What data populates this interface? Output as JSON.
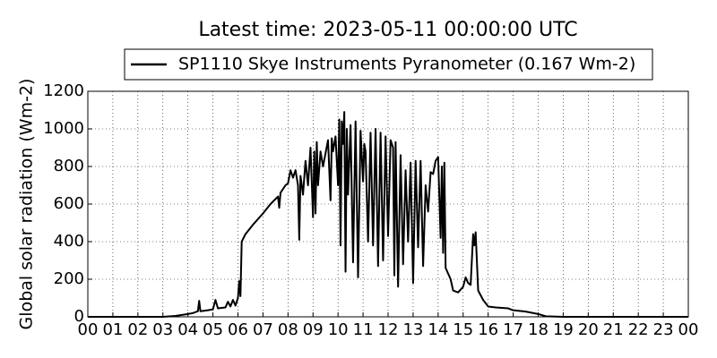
{
  "chart_data": {
    "type": "line",
    "title": "Latest time: 2023-05-11 00:00:00 UTC",
    "y_label": "Global solar radiation (Wm-2)",
    "grid": true,
    "xlim": [
      0,
      24
    ],
    "ylim": [
      0,
      1200
    ],
    "yticks": [
      0,
      200,
      400,
      600,
      800,
      1000,
      1200
    ],
    "xticks": [
      {
        "value": 0,
        "label": "00"
      },
      {
        "value": 1,
        "label": "01"
      },
      {
        "value": 2,
        "label": "02"
      },
      {
        "value": 3,
        "label": "03"
      },
      {
        "value": 4,
        "label": "04"
      },
      {
        "value": 5,
        "label": "05"
      },
      {
        "value": 6,
        "label": "06"
      },
      {
        "value": 7,
        "label": "07"
      },
      {
        "value": 8,
        "label": "08"
      },
      {
        "value": 9,
        "label": "09"
      },
      {
        "value": 10,
        "label": "10"
      },
      {
        "value": 11,
        "label": "11"
      },
      {
        "value": 12,
        "label": "12"
      },
      {
        "value": 13,
        "label": "13"
      },
      {
        "value": 14,
        "label": "14"
      },
      {
        "value": 15,
        "label": "15"
      },
      {
        "value": 16,
        "label": "16"
      },
      {
        "value": 17,
        "label": "17"
      },
      {
        "value": 18,
        "label": "18"
      },
      {
        "value": 19,
        "label": "19"
      },
      {
        "value": 20,
        "label": "20"
      },
      {
        "value": 21,
        "label": "21"
      },
      {
        "value": 22,
        "label": "22"
      },
      {
        "value": 23,
        "label": "23"
      },
      {
        "value": 24,
        "label": "00"
      }
    ],
    "x": [
      0,
      3.0,
      3.5,
      4.0,
      4.2,
      4.3,
      4.4,
      4.45,
      4.5,
      4.8,
      5.0,
      5.1,
      5.2,
      5.5,
      5.6,
      5.7,
      5.8,
      5.9,
      6.0,
      6.05,
      6.1,
      6.15,
      6.3,
      6.6,
      7.0,
      7.3,
      7.6,
      7.65,
      7.7,
      7.9,
      8.0,
      8.1,
      8.2,
      8.3,
      8.4,
      8.45,
      8.5,
      8.6,
      8.7,
      8.8,
      8.9,
      9.0,
      9.05,
      9.1,
      9.15,
      9.2,
      9.3,
      9.4,
      9.5,
      9.6,
      9.7,
      9.75,
      9.8,
      9.9,
      10.0,
      10.05,
      10.1,
      10.15,
      10.2,
      10.25,
      10.3,
      10.35,
      10.4,
      10.5,
      10.6,
      10.7,
      10.8,
      10.9,
      11.0,
      11.05,
      11.1,
      11.2,
      11.3,
      11.4,
      11.5,
      11.6,
      11.7,
      11.8,
      11.9,
      12.0,
      12.1,
      12.2,
      12.25,
      12.3,
      12.4,
      12.5,
      12.6,
      12.7,
      12.8,
      12.9,
      13.0,
      13.1,
      13.2,
      13.3,
      13.4,
      13.5,
      13.6,
      13.7,
      13.8,
      13.9,
      14.0,
      14.1,
      14.15,
      14.2,
      14.25,
      14.3,
      14.5,
      14.6,
      14.8,
      15.0,
      15.1,
      15.2,
      15.3,
      15.4,
      15.45,
      15.5,
      15.6,
      15.8,
      16.0,
      16.3,
      16.8,
      17.0,
      17.5,
      18.0,
      18.3,
      19.0,
      24.0
    ],
    "series": [
      {
        "name": "SP1110 Skye Instruments Pyranometer (0.167 Wm-2)",
        "color": "#000000",
        "values": [
          0,
          0,
          5,
          15,
          20,
          25,
          30,
          85,
          30,
          35,
          40,
          90,
          45,
          50,
          80,
          55,
          90,
          60,
          100,
          190,
          110,
          400,
          440,
          490,
          550,
          600,
          640,
          580,
          660,
          700,
          710,
          780,
          740,
          780,
          700,
          410,
          750,
          650,
          830,
          700,
          900,
          530,
          880,
          550,
          930,
          700,
          880,
          800,
          870,
          940,
          620,
          950,
          880,
          960,
          700,
          1050,
          380,
          1040,
          920,
          1090,
          240,
          1000,
          650,
          1020,
          290,
          1040,
          210,
          990,
          720,
          920,
          880,
          400,
          980,
          380,
          1000,
          270,
          980,
          300,
          960,
          430,
          940,
          900,
          220,
          930,
          160,
          860,
          280,
          780,
          400,
          820,
          180,
          830,
          370,
          830,
          270,
          700,
          560,
          770,
          760,
          830,
          850,
          420,
          800,
          340,
          820,
          260,
          200,
          140,
          130,
          160,
          210,
          180,
          170,
          440,
          380,
          450,
          140,
          90,
          55,
          50,
          45,
          35,
          28,
          15,
          3,
          0,
          0
        ]
      }
    ]
  }
}
